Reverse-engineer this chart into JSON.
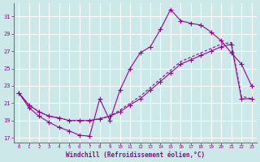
{
  "xlabel": "Windchill (Refroidissement éolien,°C)",
  "background_color": "#cce8e8",
  "grid_color": "#ffffff",
  "line_color": "#990099",
  "xlim": [
    -0.5,
    23.5
  ],
  "ylim": [
    16.5,
    32.5
  ],
  "yticks": [
    17,
    19,
    21,
    23,
    25,
    27,
    29,
    31
  ],
  "xticks": [
    0,
    1,
    2,
    3,
    4,
    5,
    6,
    7,
    8,
    9,
    10,
    11,
    12,
    13,
    14,
    15,
    16,
    17,
    18,
    19,
    20,
    21,
    22,
    23
  ],
  "line1_x": [
    0,
    1,
    2,
    3,
    4,
    5,
    6,
    7,
    8,
    9,
    10,
    11,
    12,
    13,
    14,
    15,
    16,
    17,
    18,
    19,
    20,
    21,
    22,
    23
  ],
  "line1_y": [
    22.2,
    20.5,
    19.5,
    18.8,
    18.2,
    17.8,
    17.3,
    17.2,
    21.5,
    19.0,
    22.5,
    25.0,
    26.8,
    27.5,
    29.5,
    31.8,
    30.5,
    30.2,
    30.0,
    29.2,
    28.2,
    26.8,
    25.5,
    23.0
  ],
  "line2_x": [
    0,
    1,
    2,
    3,
    4,
    5,
    6,
    7,
    8,
    9,
    10,
    11,
    12,
    13,
    14,
    15,
    16,
    17,
    18,
    19,
    20,
    21,
    22,
    23
  ],
  "line2_y": [
    22.2,
    20.8,
    20.0,
    19.5,
    19.3,
    19.0,
    19.0,
    19.0,
    19.2,
    19.5,
    20.0,
    20.8,
    21.5,
    22.5,
    23.5,
    24.5,
    25.5,
    26.0,
    26.5,
    27.0,
    27.5,
    27.8,
    21.5,
    21.5
  ],
  "line3_x": [
    0,
    1,
    2,
    3,
    4,
    5,
    6,
    7,
    8,
    9,
    10,
    11,
    12,
    13,
    14,
    15,
    16,
    17,
    18,
    19,
    20,
    21,
    22,
    23
  ],
  "line3_y": [
    22.2,
    20.8,
    20.0,
    19.5,
    19.3,
    19.0,
    19.0,
    19.0,
    19.2,
    19.5,
    20.2,
    21.0,
    21.8,
    22.8,
    23.8,
    24.8,
    25.8,
    26.3,
    26.8,
    27.3,
    27.8,
    28.0,
    21.8,
    21.5
  ]
}
